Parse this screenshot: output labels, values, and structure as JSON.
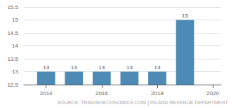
{
  "chart_data": {
    "type": "bar",
    "x": [
      2014,
      2015,
      2016,
      2017,
      2018,
      2019
    ],
    "values": [
      13,
      13,
      13,
      13,
      13,
      15
    ],
    "color": "#4d8ab5",
    "xlim": [
      2013.2,
      2020.3
    ],
    "xticks": [
      2014,
      2016,
      2018,
      2020
    ],
    "ylim": [
      12.5,
      15.5
    ],
    "yticks": [
      12.5,
      13,
      13.5,
      14,
      14.5,
      15,
      15.5
    ],
    "grid": true,
    "data_labels": true,
    "annotation": "SOURCE: TRADINGECONOMICS.COM | INLAND REVENUE DEPARTMENT"
  }
}
